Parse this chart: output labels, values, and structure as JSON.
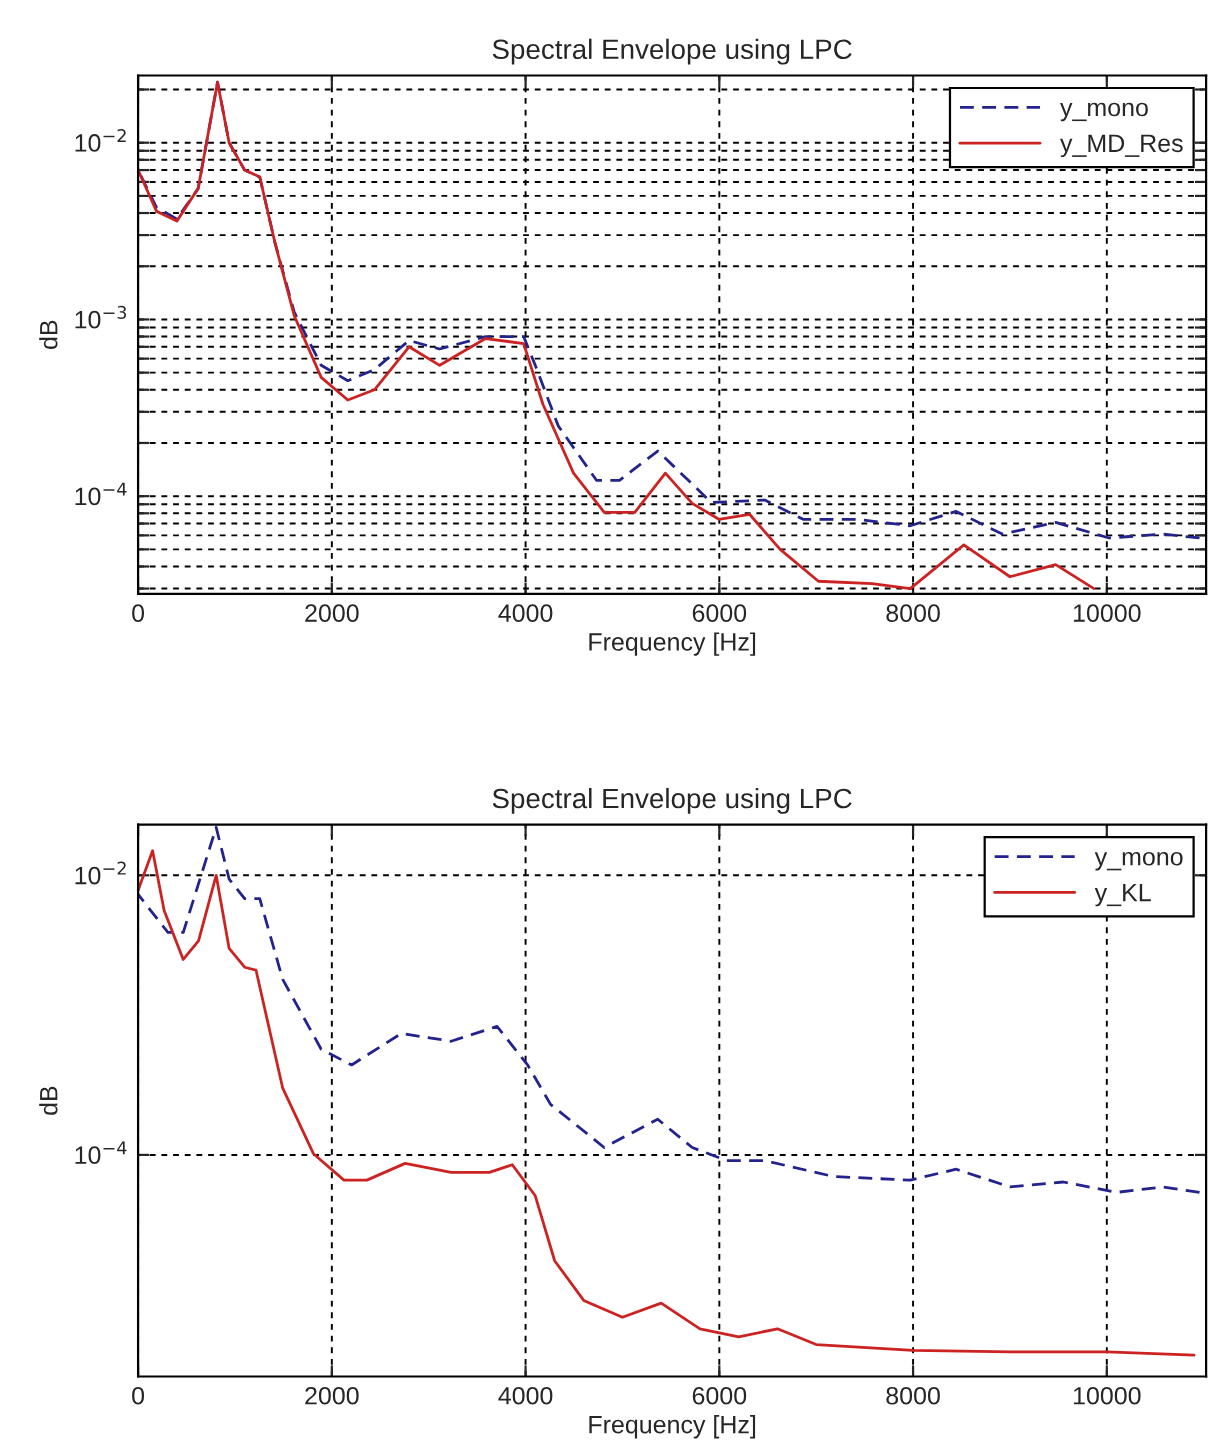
{
  "chart_data": [
    {
      "type": "line",
      "title": "Spectral Envelope using LPC",
      "xlabel": "Frequency [Hz]",
      "ylabel": "dB",
      "log": "y",
      "grid": true,
      "legend": "top right",
      "xlim": [
        0,
        11025
      ],
      "xticks": [
        0,
        2000,
        4000,
        6000,
        8000,
        10000
      ],
      "ylim": [
        2.8e-05,
        0.024
      ],
      "yticks": [
        {
          "value": 3e-05,
          "label": null
        },
        {
          "value": 4e-05,
          "label": null
        },
        {
          "value": 5e-05,
          "label": null
        },
        {
          "value": 6e-05,
          "label": null
        },
        {
          "value": 7e-05,
          "label": null
        },
        {
          "value": 8e-05,
          "label": null
        },
        {
          "value": 9e-05,
          "label": null
        },
        {
          "value": 0.0001,
          "label": "10$^{−4}$"
        },
        {
          "value": 0.0002,
          "label": null
        },
        {
          "value": 0.0003,
          "label": null
        },
        {
          "value": 0.0004,
          "label": null
        },
        {
          "value": 0.0005,
          "label": null
        },
        {
          "value": 0.0006,
          "label": null
        },
        {
          "value": 0.0007,
          "label": null
        },
        {
          "value": 0.0008,
          "label": null
        },
        {
          "value": 0.0009,
          "label": null
        },
        {
          "value": 0.001,
          "label": "10$^{−3}$"
        },
        {
          "value": 0.002,
          "label": null
        },
        {
          "value": 0.003,
          "label": null
        },
        {
          "value": 0.004,
          "label": null
        },
        {
          "value": 0.005,
          "label": null
        },
        {
          "value": 0.006,
          "label": null
        },
        {
          "value": 0.007,
          "label": null
        },
        {
          "value": 0.008,
          "label": null
        },
        {
          "value": 0.009,
          "label": null
        },
        {
          "value": 0.01,
          "label": "10$^{−2}$"
        },
        {
          "value": 0.02,
          "label": null
        }
      ],
      "series": [
        {
          "name": "y_mono",
          "color": "#23238e",
          "line_style": "dashed",
          "x": [
            0,
            190,
            400,
            620,
            820,
            940,
            1100,
            1256,
            1414,
            1612,
            1890,
            2165,
            2440,
            2797,
            3113,
            3587,
            3980,
            4100,
            4337,
            4732,
            4970,
            5364,
            5680,
            5917,
            6470,
            6865,
            7418,
            7971,
            8445,
            8920,
            9472,
            10025,
            10578,
            10957
          ],
          "values": [
            0.007,
            0.0043,
            0.0037,
            0.0055,
            0.022,
            0.01,
            0.007,
            0.0064,
            0.0027,
            0.0011,
            0.00055,
            0.00045,
            0.00052,
            0.00076,
            0.00068,
            0.0008,
            0.0008,
            0.00055,
            0.00025,
            0.000123,
            0.000123,
            0.00018,
            0.000123,
            9.2e-05,
            9.5e-05,
            7.4e-05,
            7.4e-05,
            6.8e-05,
            8.2e-05,
            6.1e-05,
            7.1e-05,
            5.8e-05,
            6.1e-05,
            5.8e-05
          ]
        },
        {
          "name": "y_MD_Res",
          "color": "#cc2222",
          "line_style": "solid",
          "x": [
            0,
            190,
            400,
            620,
            820,
            940,
            1100,
            1256,
            1414,
            1612,
            1890,
            2165,
            2440,
            2797,
            3113,
            3587,
            3980,
            4180,
            4495,
            4812,
            5128,
            5443,
            5720,
            5996,
            6312,
            6628,
            7023,
            7576,
            7971,
            8524,
            9000,
            9472,
            9867
          ],
          "values": [
            0.007,
            0.0041,
            0.0036,
            0.0055,
            0.022,
            0.01,
            0.007,
            0.0064,
            0.0027,
            0.00105,
            0.00047,
            0.00035,
            0.0004,
            0.0007,
            0.00055,
            0.00078,
            0.00073,
            0.00033,
            0.000135,
            8.1e-05,
            8.1e-05,
            0.000135,
            9.1e-05,
            7.4e-05,
            7.9e-05,
            5e-05,
            3.3e-05,
            3.2e-05,
            3e-05,
            5.3e-05,
            3.5e-05,
            4.1e-05,
            3e-05
          ]
        }
      ]
    },
    {
      "type": "line",
      "title": "Spectral Envelope using LPC",
      "xlabel": "Frequency [Hz]",
      "ylabel": "dB",
      "log": "y",
      "grid": true,
      "legend": "top right",
      "xlim": [
        0,
        11025
      ],
      "xticks": [
        0,
        2000,
        4000,
        6000,
        8000,
        10000
      ],
      "ylim": [
        2.6e-06,
        0.023
      ],
      "yticks": [
        {
          "value": 0.0001,
          "label": "10$^{−4}$"
        },
        {
          "value": 0.01,
          "label": "10$^{−2}$"
        }
      ],
      "series": [
        {
          "name": "y_mono",
          "color": "#23238e",
          "line_style": "dashed",
          "x": [
            0,
            308,
            466,
            806,
            940,
            1100,
            1256,
            1493,
            1890,
            2204,
            2718,
            3231,
            3705,
            4021,
            4258,
            4811,
            5364,
            5720,
            6075,
            6470,
            7181,
            7971,
            8445,
            9000,
            9551,
            10104,
            10578,
            10957
          ],
          "values": [
            0.0073,
            0.0039,
            0.0039,
            0.022,
            0.0094,
            0.0068,
            0.0068,
            0.0018,
            0.00057,
            0.00044,
            0.00074,
            0.00065,
            0.00083,
            0.00044,
            0.00023,
            0.000113,
            0.00018,
            0.000113,
            9.1e-05,
            9.1e-05,
            7e-05,
            6.6e-05,
            7.9e-05,
            5.9e-05,
            6.4e-05,
            5.4e-05,
            5.9e-05,
            5.4e-05
          ]
        },
        {
          "name": "y_KL",
          "color": "#cc2222",
          "line_style": "solid",
          "x": [
            0,
            150,
            269,
            466,
            624,
            806,
            940,
            1100,
            1217,
            1493,
            1810,
            2125,
            2362,
            2757,
            3231,
            3626,
            3863,
            4100,
            4300,
            4600,
            5000,
            5400,
            5800,
            6200,
            6600,
            7000,
            8000,
            9000,
            10000,
            10900
          ],
          "values": [
            0.0078,
            0.015,
            0.0056,
            0.0025,
            0.0034,
            0.01,
            0.003,
            0.0022,
            0.0021,
            0.0003,
            0.000102,
            6.6e-05,
            6.6e-05,
            8.7e-05,
            7.5e-05,
            7.5e-05,
            8.5e-05,
            5.1e-05,
            1.75e-05,
            9.1e-06,
            6.9e-06,
            8.7e-06,
            5.7e-06,
            5e-06,
            5.7e-06,
            4.4e-06,
            4e-06,
            3.9e-06,
            3.9e-06,
            3.7e-06
          ]
        }
      ]
    }
  ]
}
